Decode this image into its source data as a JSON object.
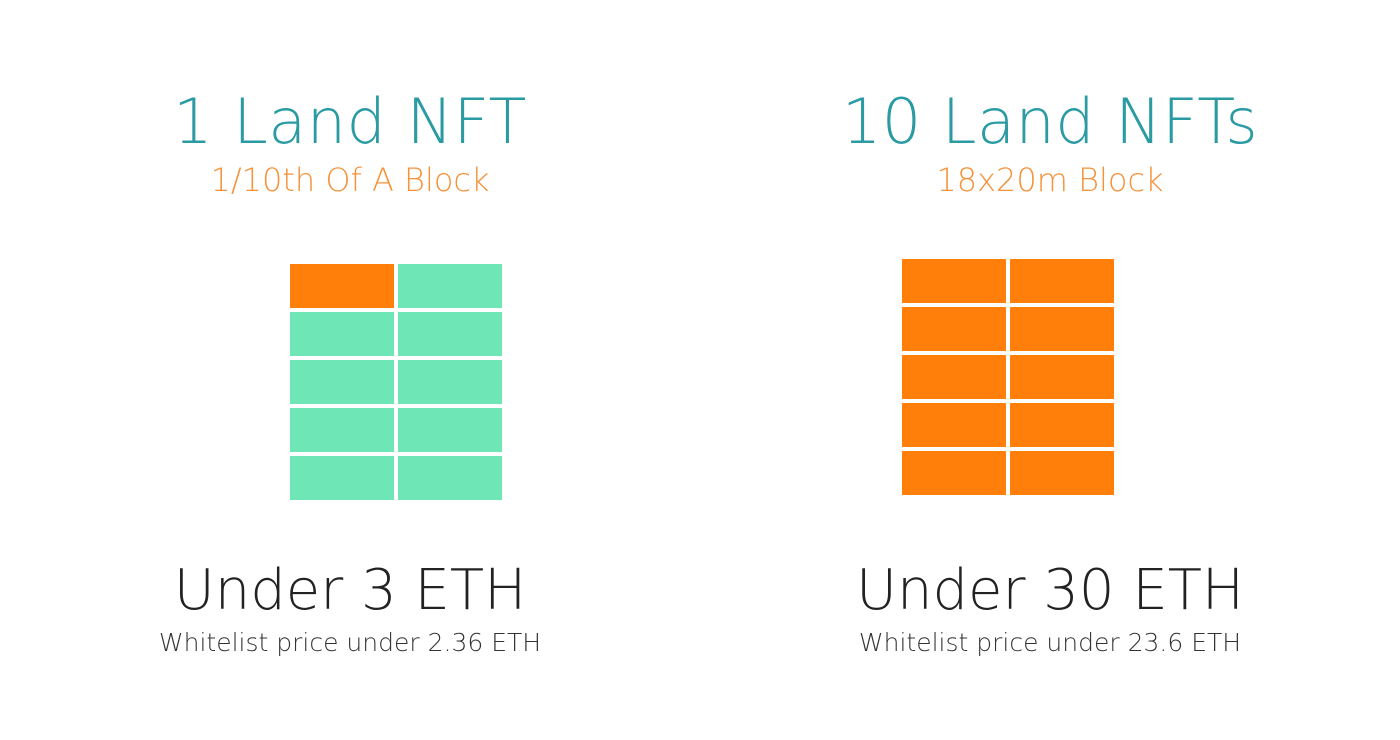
{
  "colors": {
    "title": "#2a9aa3",
    "subtitle": "#f5923a",
    "owned_cell": "#ff7f0a",
    "unowned_cell": "#6ee6b5"
  },
  "panels": [
    {
      "title": "1 Land NFT",
      "subtitle": "1/10th Of A Block",
      "owned_cells": 1,
      "total_cells": 10,
      "price": "Under 3 ETH",
      "whitelist": "Whitelist price under 2.36 ETH"
    },
    {
      "title": "10 Land NFTs",
      "subtitle": "18x20m Block",
      "owned_cells": 10,
      "total_cells": 10,
      "price": "Under 30 ETH",
      "whitelist": "Whitelist price under 23.6 ETH"
    }
  ]
}
